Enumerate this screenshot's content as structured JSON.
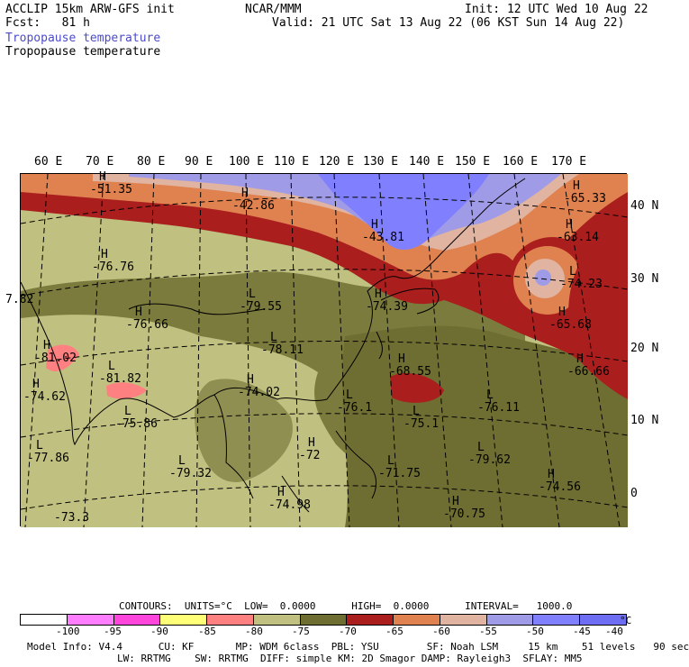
{
  "header": {
    "line1_left": "ACCLIP 15km ARW-GFS init",
    "line2_left": "Fcst:   81 h",
    "center": "NCAR/MMM",
    "line1_right": "Init: 12 UTC Wed 10 Aug 22",
    "line2_right": "Valid: 21 UTC Sat 13 Aug 22 (06 KST Sun 14 Aug 22)"
  },
  "fields": {
    "shaded": "Tropopause temperature",
    "contour": "Tropopause temperature"
  },
  "map": {
    "lon_labels": [
      "60 E",
      "70 E",
      "80 E",
      "90 E",
      "100 E",
      "110 E",
      "120 E",
      "130 E",
      "140 E",
      "150 E",
      "160 E",
      "170 E"
    ],
    "lat_labels": [
      "40 N",
      "30 N",
      "20 N",
      "10 N",
      "0"
    ],
    "annotations": [
      {
        "mark": "H",
        "value": "-51.35"
      },
      {
        "mark": "H",
        "value": "-42.86"
      },
      {
        "mark": "H",
        "value": "-43.81"
      },
      {
        "mark": "H",
        "value": "-65.33"
      },
      {
        "mark": "H",
        "value": "-63.14"
      },
      {
        "mark": "L",
        "value": "-74.23"
      },
      {
        "mark": "H",
        "value": "-76.76"
      },
      {
        "mark": "L",
        "value": "-79.55"
      },
      {
        "mark": "H",
        "value": "-76.66"
      },
      {
        "mark": "L",
        "value": "-78.11"
      },
      {
        "mark": "H",
        "value": "-74.39"
      },
      {
        "mark": "H",
        "value": "-65.68"
      },
      {
        "mark": "H",
        "value": "-68.55"
      },
      {
        "mark": "H",
        "value": "-66.66"
      },
      {
        "mark": "",
        "value": "7.82"
      },
      {
        "mark": "H",
        "value": "-81.02"
      },
      {
        "mark": "L",
        "value": "-81.82"
      },
      {
        "mark": "H",
        "value": "-74.62"
      },
      {
        "mark": "H",
        "value": "-74.02"
      },
      {
        "mark": "L",
        "value": "-76.1"
      },
      {
        "mark": "L",
        "value": "-76.11"
      },
      {
        "mark": "L",
        "value": "-75.86"
      },
      {
        "mark": "L",
        "value": "-75.1"
      },
      {
        "mark": "L",
        "value": "-77.86"
      },
      {
        "mark": "L",
        "value": "-79.32"
      },
      {
        "mark": "H",
        "value": "-72"
      },
      {
        "mark": "L",
        "value": "-71.75"
      },
      {
        "mark": "L",
        "value": "-79.62"
      },
      {
        "mark": "H",
        "value": "-74.56"
      },
      {
        "mark": "H",
        "value": "-74.98"
      },
      {
        "mark": "H",
        "value": "-70.75"
      },
      {
        "mark": "",
        "value": "-73.3"
      }
    ]
  },
  "legend": {
    "contours_text": "CONTOURS:  UNITS=°C  LOW=  0.0000      HIGH=  0.0000      INTERVAL=   1000.0",
    "colors": [
      "#ffffff",
      "#ff7dff",
      "#ff46dc",
      "#ffff78",
      "#ff8080",
      "#c0c080",
      "#6e6e32",
      "#aa1e1e",
      "#e08250",
      "#e0b4a0",
      "#a09be6",
      "#8080ff",
      "#6e6ef5"
    ],
    "ticks": [
      "-100",
      "-95",
      "-90",
      "-85",
      "-80",
      "-75",
      "-70",
      "-65",
      "-60",
      "-55",
      "-50",
      "-45",
      "-40"
    ],
    "unit": "°C"
  },
  "footer": {
    "line1": "Model Info: V4.4      CU: KF       MP: WDM 6class  PBL: YSU        SF: Noah LSM     15 km    51 levels   90 sec",
    "line2": "LW: RRTMG    SW: RRTMG  DIFF: simple KM: 2D Smagor DAMP: Rayleigh3  SFLAY: MM5"
  }
}
